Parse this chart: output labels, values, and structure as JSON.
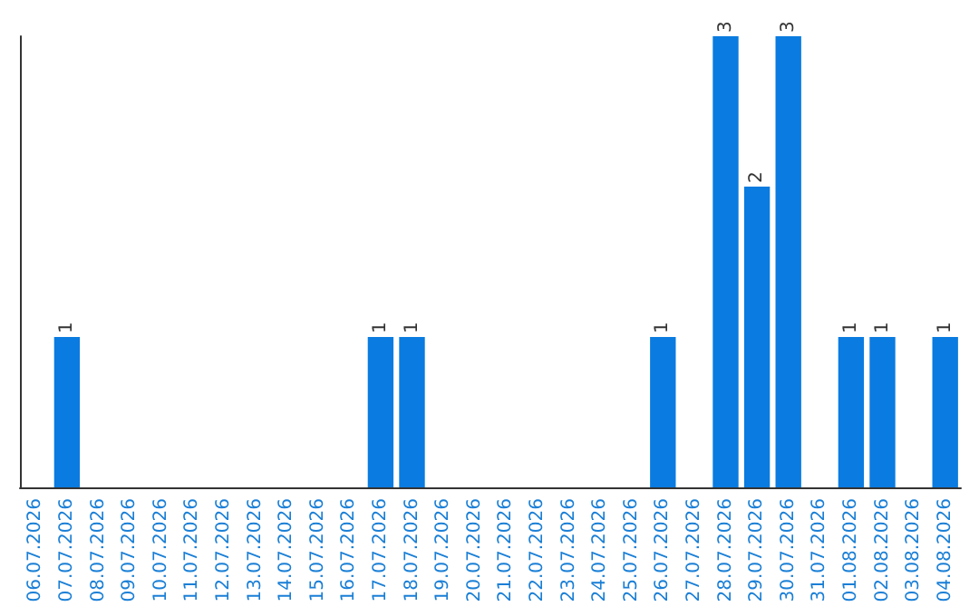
{
  "chart_data": {
    "type": "bar",
    "categories": [
      "06.07.2026",
      "07.07.2026",
      "08.07.2026",
      "09.07.2026",
      "10.07.2026",
      "11.07.2026",
      "12.07.2026",
      "13.07.2026",
      "14.07.2026",
      "15.07.2026",
      "16.07.2026",
      "17.07.2026",
      "18.07.2026",
      "19.07.2026",
      "20.07.2026",
      "21.07.2026",
      "22.07.2026",
      "23.07.2026",
      "24.07.2026",
      "25.07.2026",
      "26.07.2026",
      "27.07.2026",
      "28.07.2026",
      "29.07.2026",
      "30.07.2026",
      "31.07.2026",
      "01.08.2026",
      "02.08.2026",
      "03.08.2026",
      "04.08.2026"
    ],
    "values": [
      0,
      1,
      0,
      0,
      0,
      0,
      0,
      0,
      0,
      0,
      0,
      1,
      1,
      0,
      0,
      0,
      0,
      0,
      0,
      0,
      1,
      0,
      3,
      2,
      3,
      0,
      1,
      1,
      0,
      1
    ],
    "value_labels": [
      null,
      "1",
      null,
      null,
      null,
      null,
      null,
      null,
      null,
      null,
      null,
      "1",
      "1",
      null,
      null,
      null,
      null,
      null,
      null,
      null,
      "1",
      null,
      "3",
      "2",
      "3",
      null,
      "1",
      "1",
      null,
      "1"
    ],
    "color": "#0a7be0",
    "ylim": [
      0,
      3
    ],
    "tick_labels": "x",
    "grid": false
  }
}
